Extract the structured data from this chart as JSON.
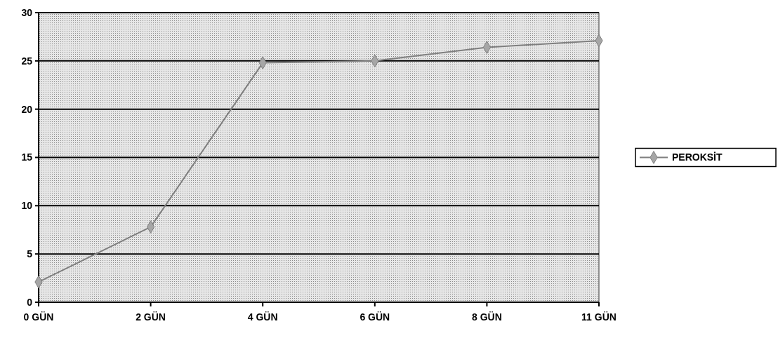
{
  "chart_data": {
    "type": "line",
    "categories": [
      "0 GÜN",
      "2 GÜN",
      "4 GÜN",
      "6 GÜN",
      "8 GÜN",
      "11 GÜN"
    ],
    "series": [
      {
        "name": "PEROKSİT",
        "color": "#7f7f7f",
        "values": [
          2.1,
          7.8,
          24.8,
          25.0,
          26.4,
          27.1
        ]
      }
    ],
    "ylim": [
      0,
      30
    ],
    "yticks": [
      0,
      5,
      10,
      15,
      20,
      25,
      30
    ],
    "grid": "y",
    "legend": "right",
    "marker": "diamond",
    "line_style": "solid"
  }
}
